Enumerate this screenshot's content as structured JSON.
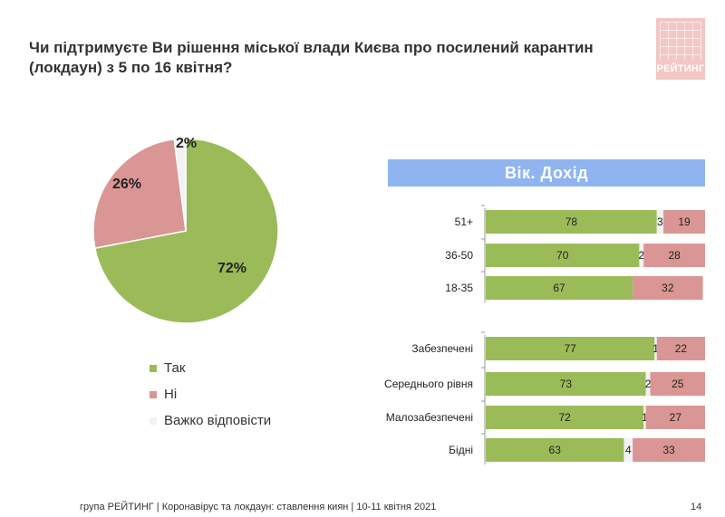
{
  "title": "Чи підтримуєте Ви рішення міської влади Києва про посилений карантин (локдаун) з 5 по 16 квітня?",
  "logo_text": "РЕЙТИНГ",
  "banner": "Вік. Дохід",
  "footer": "група РЕЙТИНГ  | Коронавірус та локдаун: ставлення киян  | 10-11 квітня 2021",
  "page_number": "14",
  "colors": {
    "yes": "#9bbb59",
    "no": "#d99694",
    "hard": "#f2f2f2",
    "banner": "#8fb4f0"
  },
  "chart_data": [
    {
      "type": "pie",
      "slices": [
        {
          "name": "Так",
          "value": 72,
          "label": "72%",
          "color": "#9bbb59"
        },
        {
          "name": "Ні",
          "value": 26,
          "label": "26%",
          "color": "#d99694"
        },
        {
          "name": "Важко відповісти",
          "value": 2,
          "label": "2%",
          "color": "#f2f2f2"
        }
      ],
      "legend": [
        "Так",
        "Ні",
        "Важко відповісти"
      ],
      "legend_position": "bottom"
    },
    {
      "type": "bar",
      "orientation": "horizontal",
      "stacked": true,
      "title": "Вік. Дохід",
      "xlim": [
        0,
        100
      ],
      "series_colors": [
        "#9bbb59",
        "#f2f2f2",
        "#d99694"
      ],
      "groups": [
        {
          "categories": [
            "51+",
            "36-50",
            "18-35"
          ],
          "rows": [
            {
              "category": "51+",
              "values": [
                78,
                3,
                19
              ]
            },
            {
              "category": "36-50",
              "values": [
                70,
                2,
                28
              ]
            },
            {
              "category": "18-35",
              "values": [
                67,
                0,
                32
              ]
            }
          ]
        },
        {
          "categories": [
            "Забезпечені",
            "Середнього рівня",
            "Малозабезпечені",
            "Бідні"
          ],
          "rows": [
            {
              "category": "Забезпечені",
              "values": [
                77,
                1,
                22
              ]
            },
            {
              "category": "Середнього рівня",
              "values": [
                73,
                2,
                25
              ]
            },
            {
              "category": "Малозабезпечені",
              "values": [
                72,
                1,
                27
              ]
            },
            {
              "category": "Бідні",
              "values": [
                63,
                4,
                33
              ]
            }
          ]
        }
      ]
    }
  ]
}
